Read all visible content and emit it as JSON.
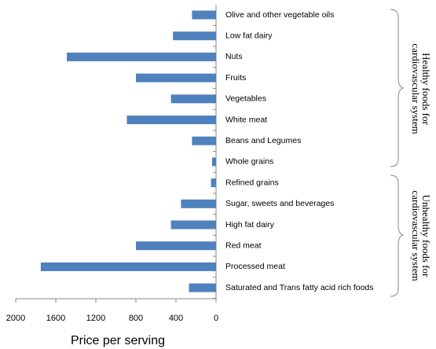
{
  "chart_data": {
    "type": "barh",
    "categories": [
      "Olive and other vegetable oils",
      "Low fat dairy",
      "Nuts",
      "Fruits",
      "Vegetables",
      "White meat",
      "Beans and Legumes",
      "Whole grains",
      "Refined grains",
      "Sugar, sweets and beverages",
      "High fat dairy",
      "Red meat",
      "Processed meat",
      "Saturated and Trans fatty acid rich foods"
    ],
    "values": [
      240,
      430,
      1490,
      800,
      450,
      890,
      240,
      40,
      50,
      350,
      450,
      800,
      1750,
      270
    ],
    "color": "#4f81bd",
    "xlim": [
      2000,
      0
    ],
    "xticks": [
      2000,
      1600,
      1200,
      800,
      400,
      0
    ],
    "xlabel": "Price per serving",
    "groups": [
      {
        "lines": [
          "Healthy foods for",
          "cardiovascular system"
        ]
      },
      {
        "lines": [
          "Unhealthy foods for",
          "cardiovascular system"
        ]
      }
    ]
  }
}
